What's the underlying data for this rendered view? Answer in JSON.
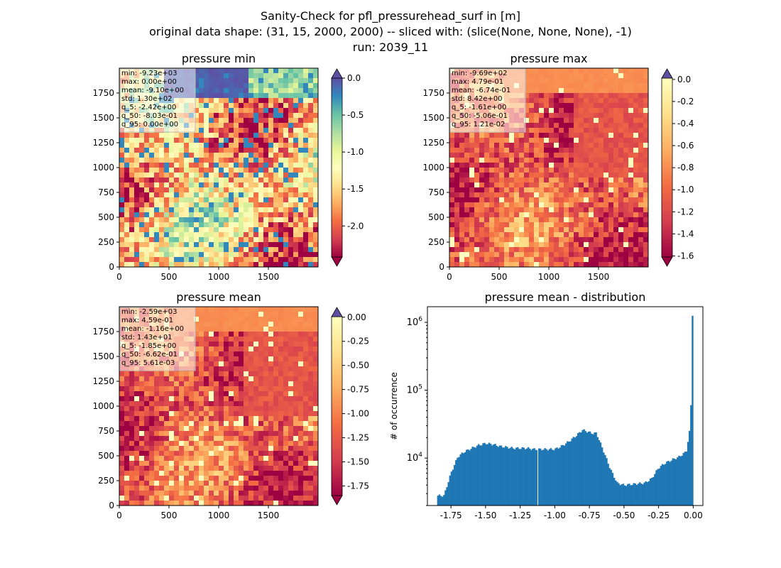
{
  "figure": {
    "title_lines": [
      "Sanity-Check for pfl_pressurehead_surf in [m]",
      "original data shape: (31, 15, 2000, 2000) -- sliced with: (slice(None, None, None), -1)",
      "run: 2039_11"
    ]
  },
  "panels": [
    {
      "title": "pressure min",
      "stats": [
        "min: -9.23e+03",
        "max: 0.00e+00",
        "mean: -9.10e+00",
        "std: 1.30e+02",
        "q_5: -2.42e+00",
        "q_50: -8.03e-01",
        "q_95: 0.00e+00"
      ],
      "x_ticks": [
        "0",
        "500",
        "1000",
        "1500"
      ],
      "y_ticks": [
        "0",
        "250",
        "500",
        "750",
        "1000",
        "1250",
        "1500",
        "1750"
      ],
      "colorbar": {
        "ticks": [
          "0.0",
          "-0.5",
          "-1.0",
          "-1.5",
          "-2.0"
        ],
        "ticks_values": [
          0,
          -0.5,
          -1.0,
          -1.5,
          -2.0
        ],
        "range": [
          -2.42,
          0.0
        ],
        "extend": "both"
      }
    },
    {
      "title": "pressure max",
      "stats": [
        "min: -9.69e+02",
        "max: 4.79e-01",
        "mean: -6.74e-01",
        "std: 8.42e+00",
        "q_5: -1.61e+00",
        "q_50: -5.06e-01",
        "q_95: 1.21e-02"
      ],
      "x_ticks": [
        "0",
        "500",
        "1000",
        "1500"
      ],
      "y_ticks": [
        "0",
        "250",
        "500",
        "750",
        "1000",
        "1250",
        "1500",
        "1750"
      ],
      "colorbar": {
        "ticks": [
          "0.0",
          "-0.2",
          "-0.4",
          "-0.6",
          "-0.8",
          "-1.0",
          "-1.2",
          "-1.4",
          "-1.6"
        ],
        "ticks_values": [
          0,
          -0.2,
          -0.4,
          -0.6,
          -0.8,
          -1.0,
          -1.2,
          -1.4,
          -1.6
        ],
        "range": [
          -1.61,
          0.012
        ],
        "extend": "both"
      }
    },
    {
      "title": "pressure mean",
      "stats": [
        "min: -2.59e+03",
        "max: 4.59e-01",
        "mean: -1.16e+00",
        "std: 1.43e+01",
        "q_5: -1.85e+00",
        "q_50: -6.62e-01",
        "q_95: 5.61e-03"
      ],
      "x_ticks": [
        "0",
        "500",
        "1000",
        "1500"
      ],
      "y_ticks": [
        "0",
        "250",
        "500",
        "750",
        "1000",
        "1250",
        "1500",
        "1750"
      ],
      "colorbar": {
        "ticks": [
          "0.00",
          "-0.25",
          "-0.50",
          "-0.75",
          "-1.00",
          "-1.25",
          "-1.50",
          "-1.75"
        ],
        "ticks_values": [
          0,
          -0.25,
          -0.5,
          -0.75,
          -1.0,
          -1.25,
          -1.5,
          -1.75
        ],
        "range": [
          -1.85,
          0.0056
        ],
        "extend": "both"
      }
    }
  ],
  "chart_data": [
    {
      "type": "heatmap",
      "title": "pressure min",
      "xlim": [
        0,
        2000
      ],
      "ylim": [
        0,
        2000
      ],
      "colormap": "Spectral",
      "value_range": [
        -2.42,
        0.0
      ]
    },
    {
      "type": "heatmap",
      "title": "pressure max",
      "xlim": [
        0,
        2000
      ],
      "ylim": [
        0,
        2000
      ],
      "colormap": "Spectral",
      "value_range": [
        -1.61,
        0.012
      ]
    },
    {
      "type": "heatmap",
      "title": "pressure mean",
      "xlim": [
        0,
        2000
      ],
      "ylim": [
        0,
        2000
      ],
      "colormap": "Spectral",
      "value_range": [
        -1.85,
        0.0056
      ]
    },
    {
      "type": "bar",
      "title": "pressure mean - distribution",
      "ylabel": "# of occurrence",
      "yscale": "log",
      "xlim": [
        -1.92,
        0.07
      ],
      "ylim": [
        2000,
        1700000
      ],
      "x_ticks": [
        "-1.75",
        "-1.50",
        "-1.25",
        "-1.00",
        "-0.75",
        "-0.50",
        "-0.25",
        "0.00"
      ],
      "x_tick_values": [
        -1.75,
        -1.5,
        -1.25,
        -1.0,
        -0.75,
        -0.5,
        -0.25,
        0.0
      ],
      "y_ticks": [
        "10^4",
        "10^5",
        "10^6"
      ],
      "y_tick_values": [
        10000,
        100000,
        1000000
      ],
      "color": "#1f77b4",
      "x": [
        -1.8,
        -1.75,
        -1.7,
        -1.65,
        -1.6,
        -1.55,
        -1.5,
        -1.45,
        -1.4,
        -1.35,
        -1.3,
        -1.25,
        -1.2,
        -1.15,
        -1.1,
        -1.05,
        -1.0,
        -0.95,
        -0.9,
        -0.85,
        -0.8,
        -0.75,
        -0.72,
        -0.7,
        -0.65,
        -0.6,
        -0.55,
        -0.5,
        -0.45,
        -0.4,
        -0.35,
        -0.3,
        -0.25,
        -0.2,
        -0.15,
        -0.1,
        -0.05,
        -0.02,
        0.0
      ],
      "values": [
        2800,
        6000,
        10500,
        12500,
        14000,
        15500,
        16500,
        16000,
        15000,
        14500,
        14000,
        14000,
        14000,
        13500,
        13500,
        13500,
        13500,
        15000,
        17500,
        21000,
        26000,
        24000,
        23000,
        23500,
        13000,
        7000,
        4300,
        4000,
        4100,
        4200,
        4300,
        5000,
        7200,
        8500,
        9500,
        10500,
        12500,
        30000,
        1250000
      ]
    }
  ]
}
